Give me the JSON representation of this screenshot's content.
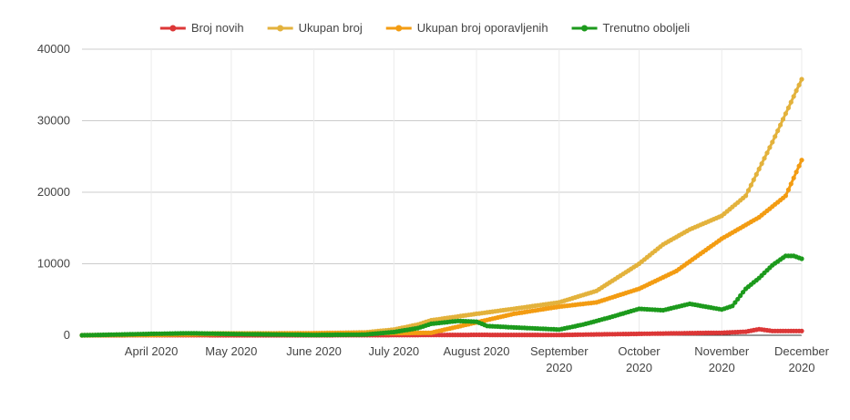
{
  "chart_data": {
    "type": "line",
    "x_type": "date",
    "xlim": [
      "2020-03-06",
      "2020-12-01"
    ],
    "ylim": [
      0,
      40000
    ],
    "y_ticks": [
      0,
      10000,
      20000,
      30000,
      40000
    ],
    "y_tick_labels": [
      "0",
      "10000",
      "20000",
      "30000",
      "40000"
    ],
    "x_ticks": [
      {
        "date": "2020-04-01",
        "label": [
          "April 2020"
        ]
      },
      {
        "date": "2020-05-01",
        "label": [
          "May 2020"
        ]
      },
      {
        "date": "2020-06-01",
        "label": [
          "June 2020"
        ]
      },
      {
        "date": "2020-07-01",
        "label": [
          "July 2020"
        ]
      },
      {
        "date": "2020-08-01",
        "label": [
          "August 2020"
        ]
      },
      {
        "date": "2020-09-01",
        "label": [
          "September",
          "2020"
        ]
      },
      {
        "date": "2020-10-01",
        "label": [
          "October",
          "2020"
        ]
      },
      {
        "date": "2020-11-01",
        "label": [
          "November",
          "2020"
        ]
      },
      {
        "date": "2020-12-01",
        "label": [
          "December",
          "2020"
        ]
      }
    ],
    "grid": true,
    "legend_position": "top",
    "series": [
      {
        "name": "Broj novih",
        "color": "#dc3737",
        "points": [
          [
            "2020-03-06",
            0
          ],
          [
            "2020-04-01",
            10
          ],
          [
            "2020-05-01",
            5
          ],
          [
            "2020-06-01",
            2
          ],
          [
            "2020-07-01",
            20
          ],
          [
            "2020-08-01",
            60
          ],
          [
            "2020-09-01",
            40
          ],
          [
            "2020-09-20",
            150
          ],
          [
            "2020-10-01",
            200
          ],
          [
            "2020-10-20",
            300
          ],
          [
            "2020-11-01",
            350
          ],
          [
            "2020-11-10",
            500
          ],
          [
            "2020-11-15",
            850
          ],
          [
            "2020-11-20",
            600
          ],
          [
            "2020-12-01",
            600
          ]
        ]
      },
      {
        "name": "Ukupan broj",
        "color": "#e3b23c",
        "points": [
          [
            "2020-03-06",
            0
          ],
          [
            "2020-04-01",
            150
          ],
          [
            "2020-04-15",
            250
          ],
          [
            "2020-05-01",
            270
          ],
          [
            "2020-06-01",
            300
          ],
          [
            "2020-06-20",
            400
          ],
          [
            "2020-07-01",
            800
          ],
          [
            "2020-07-10",
            1500
          ],
          [
            "2020-07-15",
            2100
          ],
          [
            "2020-08-01",
            3000
          ],
          [
            "2020-08-15",
            3700
          ],
          [
            "2020-09-01",
            4600
          ],
          [
            "2020-09-15",
            6200
          ],
          [
            "2020-10-01",
            10000
          ],
          [
            "2020-10-10",
            12700
          ],
          [
            "2020-10-20",
            14800
          ],
          [
            "2020-11-01",
            16700
          ],
          [
            "2020-11-10",
            19500
          ],
          [
            "2020-11-20",
            27000
          ],
          [
            "2020-12-01",
            35800
          ]
        ]
      },
      {
        "name": "Ukupan broj oporavljenih",
        "color": "#f39c12",
        "points": [
          [
            "2020-03-06",
            0
          ],
          [
            "2020-04-01",
            50
          ],
          [
            "2020-04-15",
            120
          ],
          [
            "2020-05-01",
            180
          ],
          [
            "2020-06-01",
            250
          ],
          [
            "2020-07-01",
            300
          ],
          [
            "2020-07-15",
            350
          ],
          [
            "2020-08-01",
            1800
          ],
          [
            "2020-08-15",
            3000
          ],
          [
            "2020-09-01",
            4000
          ],
          [
            "2020-09-15",
            4600
          ],
          [
            "2020-10-01",
            6500
          ],
          [
            "2020-10-15",
            9000
          ],
          [
            "2020-11-01",
            13500
          ],
          [
            "2020-11-15",
            16500
          ],
          [
            "2020-11-25",
            19500
          ],
          [
            "2020-12-01",
            24500
          ]
        ]
      },
      {
        "name": "Trenutno oboljeli",
        "color": "#1c9a1c",
        "points": [
          [
            "2020-03-06",
            0
          ],
          [
            "2020-04-01",
            200
          ],
          [
            "2020-04-15",
            280
          ],
          [
            "2020-05-01",
            180
          ],
          [
            "2020-06-01",
            50
          ],
          [
            "2020-06-20",
            100
          ],
          [
            "2020-07-01",
            450
          ],
          [
            "2020-07-10",
            1000
          ],
          [
            "2020-07-15",
            1600
          ],
          [
            "2020-07-25",
            2000
          ],
          [
            "2020-08-01",
            1900
          ],
          [
            "2020-08-05",
            1300
          ],
          [
            "2020-08-15",
            1100
          ],
          [
            "2020-09-01",
            800
          ],
          [
            "2020-09-10",
            1500
          ],
          [
            "2020-09-20",
            2500
          ],
          [
            "2020-10-01",
            3700
          ],
          [
            "2020-10-10",
            3500
          ],
          [
            "2020-10-20",
            4400
          ],
          [
            "2020-11-01",
            3600
          ],
          [
            "2020-11-05",
            4100
          ],
          [
            "2020-11-10",
            6500
          ],
          [
            "2020-11-15",
            8000
          ],
          [
            "2020-11-20",
            9800
          ],
          [
            "2020-11-25",
            11100
          ],
          [
            "2020-11-28",
            11100
          ],
          [
            "2020-12-01",
            10700
          ]
        ]
      }
    ]
  }
}
